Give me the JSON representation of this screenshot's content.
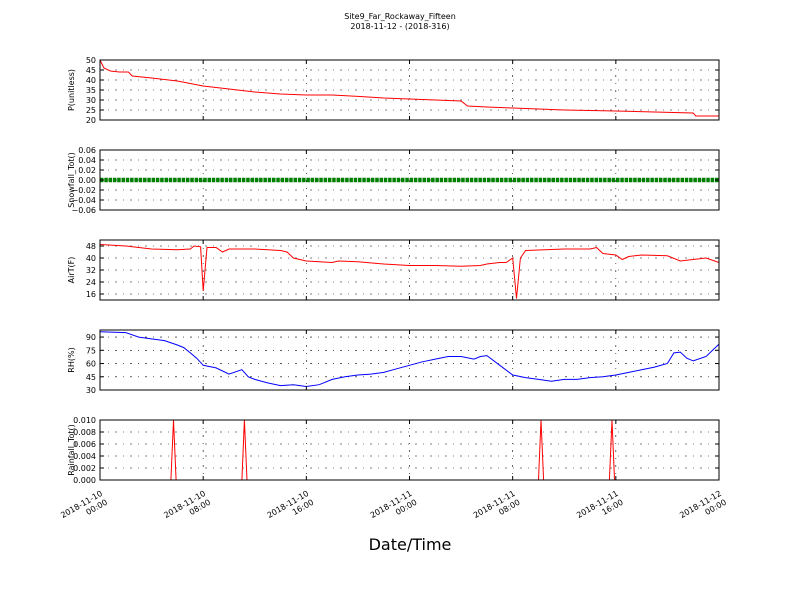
{
  "chart_data": {
    "type": "line",
    "title": "Site9_Far_Rockaway_Fifteen",
    "subtitle": "2018-11-12 - (2018-316)",
    "xlabel": "Date/Time",
    "x_tick_labels": [
      [
        "2018-11-10",
        "00:00"
      ],
      [
        "2018-11-10",
        "08:00"
      ],
      [
        "2018-11-10",
        "16:00"
      ],
      [
        "2018-11-11",
        "00:00"
      ],
      [
        "2018-11-11",
        "08:00"
      ],
      [
        "2018-11-11",
        "16:00"
      ],
      [
        "2018-11-12",
        "00:00"
      ]
    ],
    "x_range_hours": [
      0,
      48
    ],
    "grid": true,
    "panels": [
      {
        "ylabel": "P(unitless)",
        "ylim": [
          20,
          50
        ],
        "yticks": [
          "20",
          "25",
          "30",
          "35",
          "40",
          "45",
          "50"
        ],
        "ytick_values": [
          20,
          25,
          30,
          35,
          40,
          45,
          50
        ],
        "color": "#ff0000",
        "marker": false,
        "points": [
          [
            0,
            50
          ],
          [
            0.3,
            46
          ],
          [
            0.8,
            44.5
          ],
          [
            1.5,
            44
          ],
          [
            2.2,
            44
          ],
          [
            2.5,
            42
          ],
          [
            4,
            41
          ],
          [
            6,
            39.5
          ],
          [
            8,
            37
          ],
          [
            10,
            35.5
          ],
          [
            12,
            34
          ],
          [
            14,
            33
          ],
          [
            16,
            32.5
          ],
          [
            18,
            32.5
          ],
          [
            20,
            31.8
          ],
          [
            22,
            31
          ],
          [
            24,
            30.5
          ],
          [
            26,
            30
          ],
          [
            28,
            29.5
          ],
          [
            28.5,
            27
          ],
          [
            30,
            26.5
          ],
          [
            32,
            26
          ],
          [
            36,
            25
          ],
          [
            40,
            24.5
          ],
          [
            46,
            23.5
          ],
          [
            46.2,
            22
          ],
          [
            48,
            22
          ]
        ]
      },
      {
        "ylabel": "Snowfall_Tot()",
        "ylim": [
          -0.06,
          0.06
        ],
        "yticks": [
          "−0.06",
          "−0.04",
          "−0.02",
          "0.00",
          "0.02",
          "0.04",
          "0.06"
        ],
        "ytick_values": [
          -0.06,
          -0.04,
          -0.02,
          0,
          0.02,
          0.04,
          0.06
        ],
        "color": "#008000",
        "marker": true,
        "points": [
          [
            0,
            0
          ],
          [
            48,
            0
          ]
        ]
      },
      {
        "ylabel": "AirT(F)",
        "ylim": [
          12,
          52
        ],
        "yticks": [
          "16",
          "24",
          "32",
          "40",
          "48"
        ],
        "ytick_values": [
          16,
          24,
          32,
          40,
          48
        ],
        "color": "#ff0000",
        "marker": false,
        "points": [
          [
            0,
            49
          ],
          [
            2,
            48
          ],
          [
            4,
            46
          ],
          [
            6,
            45.5
          ],
          [
            7,
            46
          ],
          [
            7.3,
            48
          ],
          [
            7.8,
            47.5
          ],
          [
            8.0,
            18
          ],
          [
            8.3,
            47
          ],
          [
            9,
            47
          ],
          [
            9.5,
            44
          ],
          [
            10,
            46
          ],
          [
            12,
            46
          ],
          [
            14,
            45
          ],
          [
            14.5,
            44
          ],
          [
            15,
            40
          ],
          [
            16,
            38
          ],
          [
            18,
            37
          ],
          [
            18.5,
            38
          ],
          [
            20,
            37.5
          ],
          [
            22,
            36
          ],
          [
            24,
            35
          ],
          [
            26,
            35
          ],
          [
            28,
            34.5
          ],
          [
            29.5,
            35
          ],
          [
            30,
            36
          ],
          [
            31,
            37
          ],
          [
            31.5,
            37
          ],
          [
            32,
            40
          ],
          [
            32.3,
            13
          ],
          [
            32.6,
            40
          ],
          [
            33,
            45
          ],
          [
            36,
            46
          ],
          [
            38,
            46
          ],
          [
            38.5,
            47
          ],
          [
            39,
            43
          ],
          [
            40,
            42
          ],
          [
            40.5,
            39
          ],
          [
            41,
            41
          ],
          [
            42,
            42
          ],
          [
            44,
            41.5
          ],
          [
            45,
            38
          ],
          [
            46,
            39
          ],
          [
            47,
            40
          ],
          [
            48,
            37
          ]
        ]
      },
      {
        "ylabel": "RH(%)",
        "ylim": [
          30,
          98
        ],
        "yticks": [
          "30",
          "45",
          "60",
          "75",
          "90"
        ],
        "ytick_values": [
          30,
          45,
          60,
          75,
          90
        ],
        "color": "#0000ff",
        "marker": false,
        "points": [
          [
            0,
            96
          ],
          [
            2,
            95
          ],
          [
            3,
            90
          ],
          [
            5,
            86
          ],
          [
            6,
            81
          ],
          [
            6.5,
            78
          ],
          [
            7,
            72
          ],
          [
            7.5,
            66
          ],
          [
            8,
            58
          ],
          [
            9,
            55
          ],
          [
            10,
            48
          ],
          [
            11,
            53
          ],
          [
            11.5,
            45
          ],
          [
            12,
            42
          ],
          [
            13,
            38
          ],
          [
            14,
            35
          ],
          [
            15,
            36
          ],
          [
            16,
            34
          ],
          [
            17,
            36
          ],
          [
            18,
            42
          ],
          [
            19,
            45
          ],
          [
            20,
            47
          ],
          [
            21,
            48
          ],
          [
            22,
            50
          ],
          [
            23,
            54
          ],
          [
            24,
            58
          ],
          [
            25,
            62
          ],
          [
            26,
            65
          ],
          [
            27,
            68
          ],
          [
            28,
            68
          ],
          [
            29,
            65
          ],
          [
            29.5,
            68
          ],
          [
            30,
            69
          ],
          [
            31,
            58
          ],
          [
            32,
            47
          ],
          [
            33,
            44
          ],
          [
            34,
            42
          ],
          [
            35,
            40
          ],
          [
            36,
            42
          ],
          [
            37,
            42
          ],
          [
            38,
            44
          ],
          [
            39,
            45
          ],
          [
            40,
            47
          ],
          [
            41,
            50
          ],
          [
            42,
            53
          ],
          [
            43,
            56
          ],
          [
            44,
            60
          ],
          [
            44.5,
            72
          ],
          [
            45,
            73
          ],
          [
            45.5,
            66
          ],
          [
            46,
            63
          ],
          [
            47,
            68
          ],
          [
            48,
            82
          ]
        ]
      },
      {
        "ylabel": "Rainfall_Tot()",
        "ylim": [
          0,
          0.01
        ],
        "yticks": [
          "0.000",
          "0.002",
          "0.004",
          "0.006",
          "0.008",
          "0.010"
        ],
        "ytick_values": [
          0,
          0.002,
          0.004,
          0.006,
          0.008,
          0.01
        ],
        "color": "#ff0000",
        "marker": false,
        "points": [
          [
            0,
            0
          ],
          [
            5.5,
            0
          ],
          [
            5.7,
            0.01
          ],
          [
            5.9,
            0
          ],
          [
            11.0,
            0
          ],
          [
            11.2,
            0.01
          ],
          [
            11.4,
            0
          ],
          [
            34.0,
            0
          ],
          [
            34.2,
            0.01
          ],
          [
            34.4,
            0
          ],
          [
            39.5,
            0
          ],
          [
            39.7,
            0.01
          ],
          [
            39.9,
            0
          ],
          [
            48,
            0
          ]
        ]
      }
    ]
  }
}
